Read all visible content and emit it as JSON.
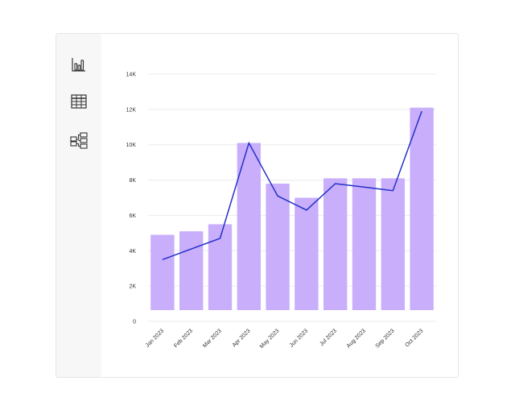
{
  "toolbar": {
    "items": [
      {
        "icon": "bar-chart-icon"
      },
      {
        "icon": "table-icon"
      },
      {
        "icon": "hierarchy-icon"
      }
    ]
  },
  "chart_data": {
    "type": "bar",
    "categories": [
      "Jan 2023",
      "Feb 2023",
      "Mar 2023",
      "Apr 2023",
      "May 2023",
      "Jun 2023",
      "Jul 2023",
      "Aug 2023",
      "Sep 2023",
      "Oct 2023"
    ],
    "series": [
      {
        "type": "bar",
        "values": [
          4900,
          5100,
          5500,
          10100,
          7800,
          7000,
          8100,
          8100,
          8100,
          12100
        ]
      },
      {
        "type": "line",
        "values": [
          3500,
          4100,
          4700,
          10100,
          7100,
          6300,
          7800,
          7600,
          7400,
          11900
        ]
      }
    ],
    "y_ticks": [
      "0",
      "2K",
      "4K",
      "6K",
      "8K",
      "10K",
      "12K",
      "14K"
    ],
    "y_tick_values": [
      0,
      2000,
      4000,
      6000,
      8000,
      10000,
      12000,
      14000
    ],
    "ylim": [
      0,
      14000
    ],
    "grid": true,
    "legend": "none",
    "colors": {
      "bar": "#c8aefb",
      "line": "#2430c9",
      "grid": "#ebebeb",
      "axis": "#333333"
    }
  }
}
